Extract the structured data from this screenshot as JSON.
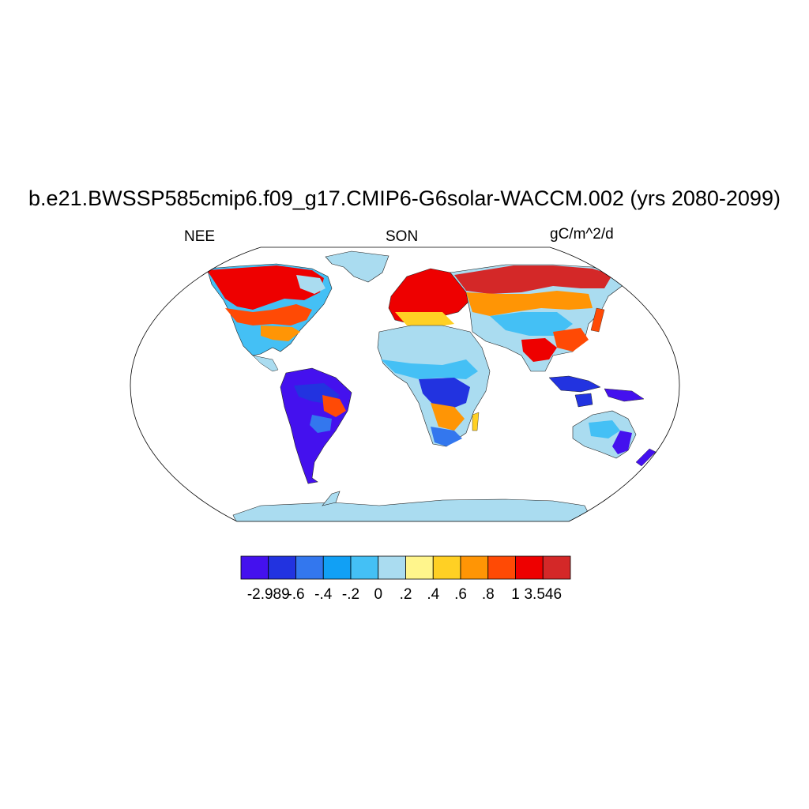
{
  "title": "b.e21.BWSSP585cmip6.f09_g17.CMIP6-G6solar-WACCM.002 (yrs 2080-2099)",
  "variable": "NEE",
  "season": "SON",
  "units": "gC/m^2/d",
  "colorbar": {
    "colors": [
      "#4411ee",
      "#2233e0",
      "#3377ee",
      "#11a0f5",
      "#44c0f5",
      "#aadcf0",
      "#fff58c",
      "#ffd024",
      "#ff9505",
      "#ff4a05",
      "#ee0000",
      "#d42828"
    ],
    "labels": [
      "-2.989",
      "-.6",
      "-.4",
      "-.2",
      "0",
      ".2",
      ".4",
      ".6",
      ".8",
      "1",
      "3.546"
    ]
  }
}
